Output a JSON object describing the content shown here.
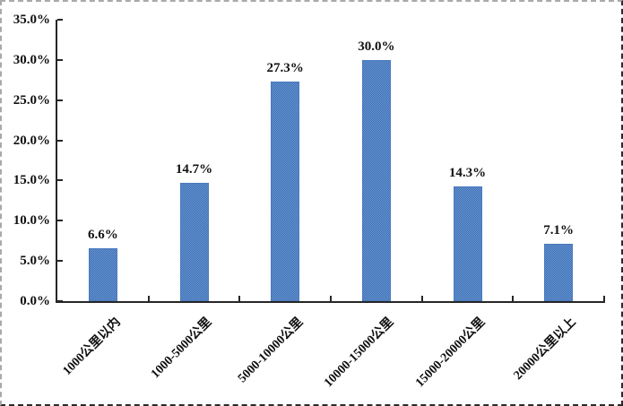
{
  "chart_data": {
    "type": "bar",
    "title": "",
    "xlabel": "",
    "ylabel": "",
    "categories": [
      "1000公里以内",
      "1000-5000公里",
      "5000-10000公里",
      "10000-15000公里",
      "15000-20000公里",
      "20000公里以上"
    ],
    "values": [
      6.6,
      14.7,
      27.3,
      30.0,
      14.3,
      7.1
    ],
    "data_labels": [
      "6.6%",
      "14.7%",
      "27.3%",
      "30.0%",
      "14.3%",
      "7.1%"
    ],
    "ylim": [
      0,
      35
    ],
    "ytick_step": 5,
    "ytick_labels": [
      "0.0%",
      "5.0%",
      "10.0%",
      "15.0%",
      "20.0%",
      "25.0%",
      "30.0%",
      "35.0%"
    ],
    "grid": false,
    "legend": false,
    "colors": {
      "bar_fill": "#4a7bc0",
      "bar_fill_light": "#6d99d3",
      "bar_fill_dark": "#3a6cb4",
      "axis": "#262626",
      "text": "#111111",
      "background": "#ffffff"
    }
  }
}
